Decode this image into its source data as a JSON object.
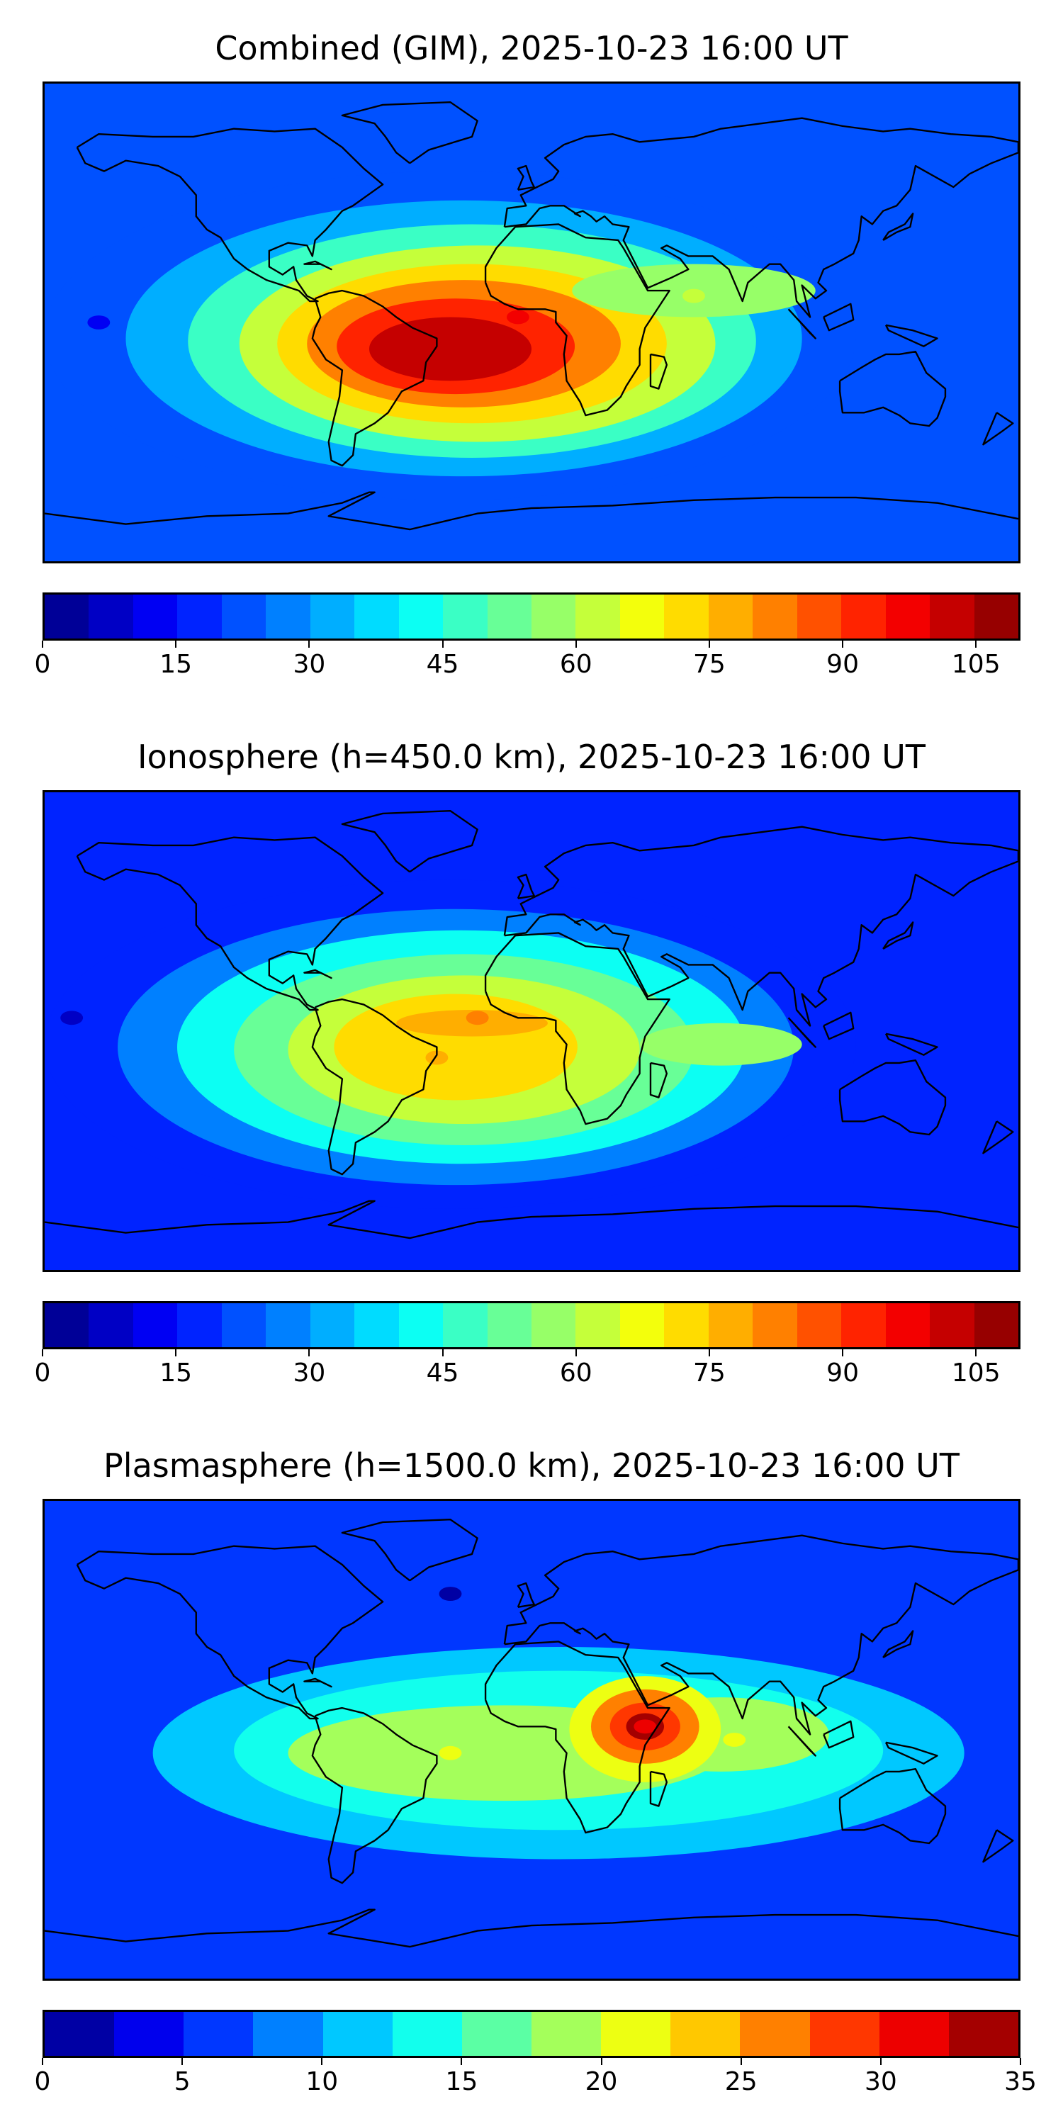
{
  "chart_data": [
    {
      "type": "heatmap",
      "title": "Combined (GIM), 2025-10-23 16:00 UT",
      "map": "world-equirectangular",
      "colorbar": {
        "colormap": "jet",
        "levels": [
          0,
          5,
          10,
          15,
          20,
          25,
          30,
          35,
          40,
          45,
          50,
          55,
          60,
          65,
          70,
          75,
          80,
          85,
          90,
          95,
          100,
          105,
          110
        ],
        "ticks": [
          0,
          15,
          30,
          45,
          60,
          75,
          90,
          105
        ]
      },
      "features": [
        {
          "name": "main-maximum",
          "lon": -35,
          "lat": -10,
          "value": 100
        },
        {
          "name": "west-africa-lobe",
          "lon": -5,
          "lat": 2,
          "value": 95
        },
        {
          "name": "arabian-sea-lobe",
          "lon": 60,
          "lat": 10,
          "value": 60
        },
        {
          "name": "pacific-minimum",
          "lon": -160,
          "lat": 0,
          "value": 10
        }
      ]
    },
    {
      "type": "heatmap",
      "title": "Ionosphere  (h=450.0 km), 2025-10-23 16:00 UT",
      "map": "world-equirectangular",
      "colorbar": {
        "colormap": "jet",
        "levels": [
          0,
          5,
          10,
          15,
          20,
          25,
          30,
          35,
          40,
          45,
          50,
          55,
          60,
          65,
          70,
          75,
          80,
          85,
          90,
          95,
          100,
          105,
          110
        ],
        "ticks": [
          0,
          15,
          30,
          45,
          60,
          75,
          90,
          105
        ]
      },
      "features": [
        {
          "name": "main-maximum",
          "lon": -35,
          "lat": -10,
          "value": 75
        },
        {
          "name": "equatorial-ridge",
          "lon": -20,
          "lat": 5,
          "value": 80
        },
        {
          "name": "indian-ocean-lobe",
          "lon": 70,
          "lat": -5,
          "value": 55
        },
        {
          "name": "pacific-minimum",
          "lon": -170,
          "lat": 5,
          "value": 5
        }
      ]
    },
    {
      "type": "heatmap",
      "title": "Plasmasphere (h=1500.0 km), 2025-10-23 16:00 UT",
      "map": "world-equirectangular",
      "colorbar": {
        "colormap": "jet",
        "levels": [
          0,
          2.5,
          5,
          7.5,
          10,
          12.5,
          15,
          17.5,
          20,
          22.5,
          25,
          27.5,
          30,
          32.5,
          35
        ],
        "ticks": [
          0,
          5,
          10,
          15,
          20,
          25,
          30,
          35
        ]
      },
      "features": [
        {
          "name": "horn-of-africa-maximum",
          "lon": 42,
          "lat": 5,
          "value": 32
        },
        {
          "name": "atlantic-band",
          "lon": -30,
          "lat": -5,
          "value": 21
        },
        {
          "name": "indian-ocean-band",
          "lon": 75,
          "lat": 0,
          "value": 20
        },
        {
          "name": "north-atlantic-minimum",
          "lon": -30,
          "lat": 55,
          "value": 2
        }
      ]
    }
  ]
}
